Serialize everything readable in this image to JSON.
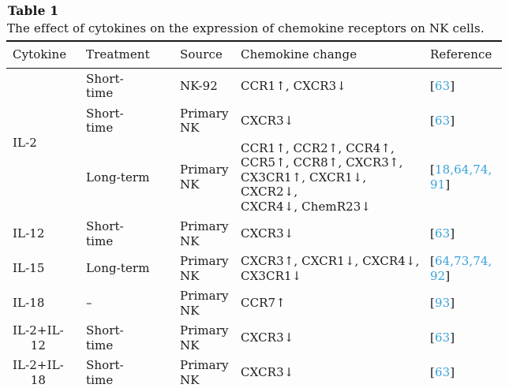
{
  "figure": {
    "title": "Table 1",
    "caption": "The effect of cytokines on the expression of chemokine receptors on NK cells."
  },
  "columns": [
    "Cytokine",
    "Treatment",
    "Source",
    "Chemokine change",
    "Reference"
  ],
  "link_color": "#3aa1da",
  "groups": [
    {
      "cytokine": "IL-2",
      "rows": [
        {
          "treatment": "Short-\ntime",
          "source": "NK-92",
          "change": "CCR1↑, CXCR3↓",
          "ref": {
            "open": "[",
            "links": "63",
            "close": "]"
          }
        },
        {
          "treatment": "Short-\ntime",
          "source": "Primary\nNK",
          "change": "CXCR3↓",
          "ref": {
            "open": "[",
            "links": "63",
            "close": "]"
          }
        },
        {
          "treatment": "Long-term",
          "source": "Primary\nNK",
          "change": "CCR1↑, CCR2↑, CCR4↑,\nCCR5↑, CCR8↑, CXCR3↑,\nCX3CR1↑, CXCR1↓, CXCR2↓,\nCXCR4↓, ChemR23↓",
          "ref": {
            "open": "[",
            "links": "18,64,74,\n91",
            "close": "]"
          }
        }
      ]
    },
    {
      "cytokine": "IL-12",
      "rows": [
        {
          "treatment": "Short-\ntime",
          "source": "Primary\nNK",
          "change": "CXCR3↓",
          "ref": {
            "open": "[",
            "links": "63",
            "close": "]"
          }
        }
      ]
    },
    {
      "cytokine": "IL-15",
      "rows": [
        {
          "treatment": "Long-term",
          "source": "Primary\nNK",
          "change": "CXCR3↑, CXCR1↓, CXCR4↓,\nCX3CR1↓",
          "ref": {
            "open": "[",
            "links": "64,73,74,\n92",
            "close": "]"
          }
        }
      ]
    },
    {
      "cytokine": "IL-18",
      "rows": [
        {
          "treatment": "–",
          "source": "Primary\nNK",
          "change": "CCR7↑",
          "ref": {
            "open": "[",
            "links": "93",
            "close": "]"
          }
        }
      ]
    },
    {
      "cytokine": "IL-2+IL-\n12",
      "rows": [
        {
          "treatment": "Short-\ntime",
          "source": "Primary\nNK",
          "change": "CXCR3↓",
          "ref": {
            "open": "[",
            "links": "63",
            "close": "]"
          }
        }
      ]
    },
    {
      "cytokine": "IL-2+IL-\n18",
      "rows": [
        {
          "treatment": "Short-\ntime",
          "source": "Primary\nNK",
          "change": "CXCR3↓",
          "ref": {
            "open": "[",
            "links": "63",
            "close": "]"
          }
        }
      ]
    }
  ]
}
